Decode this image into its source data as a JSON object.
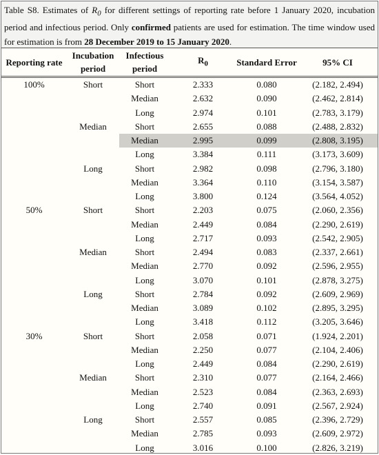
{
  "caption": {
    "parts": [
      "Table S8. Estimates of ",
      "R",
      "0",
      " for different settings of reporting rate before 1 January 2020, incubation period and infectious period. Only ",
      "confirmed",
      " patients are used for estimation. The time window used for estimation is from ",
      "28 December 2019 to 15 January 2020",
      "."
    ]
  },
  "table": {
    "header": [
      "Reporting rate",
      "Incubation period",
      "Infectious period",
      {
        "symbol": "R",
        "subscript": "0"
      },
      "Standard Error",
      "95% CI"
    ],
    "rows": [
      [
        "100%",
        "Short",
        "Short",
        "2.333",
        "0.080",
        "(2.182, 2.494)"
      ],
      [
        null,
        null,
        "Median",
        "2.632",
        "0.090",
        "(2.462, 2.814)"
      ],
      [
        null,
        null,
        "Long",
        "2.974",
        "0.101",
        "(2.783, 3.179)"
      ],
      [
        null,
        "Median",
        "Short",
        "2.655",
        "0.088",
        "(2.488, 2.832)"
      ],
      [
        null,
        null,
        "Median",
        "2.995",
        "0.099",
        "(2.808, 3.195)"
      ],
      [
        null,
        null,
        "Long",
        "3.384",
        "0.111",
        "(3.173, 3.609)"
      ],
      [
        null,
        "Long",
        "Short",
        "2.982",
        "0.098",
        "(2.796, 3.180)"
      ],
      [
        null,
        null,
        "Median",
        "3.364",
        "0.110",
        "(3.154, 3.587)"
      ],
      [
        null,
        null,
        "Long",
        "3.800",
        "0.124",
        "(3.564, 4.052)"
      ],
      [
        "50%",
        "Short",
        "Short",
        "2.203",
        "0.075",
        "(2.060, 2.356)"
      ],
      [
        null,
        null,
        "Median",
        "2.449",
        "0.084",
        "(2.290, 2.619)"
      ],
      [
        null,
        null,
        "Long",
        "2.717",
        "0.093",
        "(2.542, 2.905)"
      ],
      [
        null,
        "Median",
        "Short",
        "2.494",
        "0.083",
        "(2.337, 2.661)"
      ],
      [
        null,
        null,
        "Median",
        "2.770",
        "0.092",
        "(2.596, 2.955)"
      ],
      [
        null,
        null,
        "Long",
        "3.070",
        "0.101",
        "(2.878, 3.275)"
      ],
      [
        null,
        "Long",
        "Short",
        "2.784",
        "0.092",
        "(2.609, 2.969)"
      ],
      [
        null,
        null,
        "Median",
        "3.089",
        "0.102",
        "(2.895, 3.295)"
      ],
      [
        null,
        null,
        "Long",
        "3.418",
        "0.112",
        "(3.205, 3.646)"
      ],
      [
        "30%",
        "Short",
        "Short",
        "2.058",
        "0.071",
        "(1.924, 2.201)"
      ],
      [
        null,
        null,
        "Median",
        "2.250",
        "0.077",
        "(2.104, 2.406)"
      ],
      [
        null,
        null,
        "Long",
        "2.449",
        "0.084",
        "(2.290, 2.619)"
      ],
      [
        null,
        "Median",
        "Short",
        "2.310",
        "0.077",
        "(2.164, 2.466)"
      ],
      [
        null,
        null,
        "Median",
        "2.523",
        "0.084",
        "(2.363, 2.693)"
      ],
      [
        null,
        null,
        "Long",
        "2.740",
        "0.091",
        "(2.567, 2.924)"
      ],
      [
        null,
        "Long",
        "Short",
        "2.557",
        "0.085",
        "(2.396, 2.729)"
      ],
      [
        null,
        null,
        "Median",
        "2.785",
        "0.093",
        "(2.609, 2.972)"
      ],
      [
        null,
        null,
        "Long",
        "3.016",
        "0.100",
        "(2.826, 3.219)"
      ]
    ]
  }
}
